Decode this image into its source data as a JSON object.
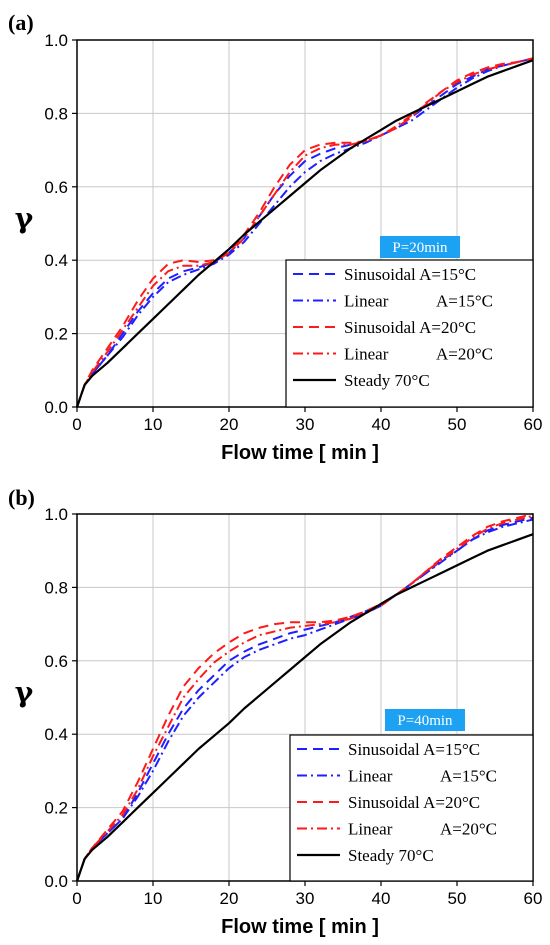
{
  "chart_data": [
    {
      "type": "line",
      "panel_label": "(a)",
      "xlabel": "Flow time [ min ]",
      "ylabel": "γ",
      "xlim": [
        0,
        60
      ],
      "ylim": [
        0,
        1.0
      ],
      "xticks": [
        0,
        10,
        20,
        30,
        40,
        50,
        60
      ],
      "yticks": [
        0.0,
        0.2,
        0.4,
        0.6,
        0.8,
        1.0
      ],
      "ytick_labels": [
        "0.0",
        "0.2",
        "0.4",
        "0.6",
        "0.8",
        "1.0"
      ],
      "grid": true,
      "legend_position": "bottom-right",
      "annotation": "P=20min",
      "annotation_color": "#1da1f2",
      "series": [
        {
          "name": "Sinusoidal A=15°C",
          "color": "#1f1fff",
          "dash": "dash",
          "x": [
            0,
            1,
            2,
            4,
            6,
            8,
            10,
            12,
            14,
            16,
            18,
            20,
            22,
            24,
            26,
            28,
            30,
            32,
            34,
            36,
            38,
            40,
            42,
            44,
            46,
            48,
            50,
            52,
            54,
            56,
            58,
            60
          ],
          "y": [
            0,
            0.06,
            0.09,
            0.14,
            0.2,
            0.26,
            0.31,
            0.35,
            0.37,
            0.38,
            0.395,
            0.42,
            0.46,
            0.52,
            0.58,
            0.63,
            0.67,
            0.69,
            0.705,
            0.715,
            0.725,
            0.74,
            0.76,
            0.79,
            0.82,
            0.85,
            0.88,
            0.9,
            0.92,
            0.93,
            0.94,
            0.95
          ]
        },
        {
          "name": "Linear A=15°C",
          "color": "#1f1fff",
          "dash": "dashdot",
          "x": [
            0,
            1,
            2,
            4,
            6,
            8,
            10,
            12,
            14,
            16,
            18,
            20,
            22,
            24,
            26,
            28,
            30,
            32,
            34,
            36,
            38,
            40,
            42,
            44,
            46,
            48,
            50,
            52,
            54,
            56,
            58,
            60
          ],
          "y": [
            0,
            0.06,
            0.09,
            0.14,
            0.19,
            0.25,
            0.3,
            0.34,
            0.36,
            0.375,
            0.39,
            0.415,
            0.45,
            0.5,
            0.55,
            0.6,
            0.64,
            0.67,
            0.69,
            0.705,
            0.72,
            0.74,
            0.76,
            0.78,
            0.81,
            0.84,
            0.87,
            0.895,
            0.915,
            0.93,
            0.94,
            0.95
          ]
        },
        {
          "name": "Sinusoidal A=20°C",
          "color": "#ff1a1a",
          "dash": "dash",
          "x": [
            0,
            1,
            2,
            4,
            6,
            8,
            10,
            12,
            14,
            16,
            18,
            20,
            22,
            24,
            26,
            28,
            30,
            32,
            34,
            36,
            38,
            40,
            42,
            44,
            46,
            48,
            50,
            52,
            54,
            56,
            58,
            60
          ],
          "y": [
            0,
            0.06,
            0.1,
            0.16,
            0.22,
            0.29,
            0.35,
            0.39,
            0.4,
            0.395,
            0.4,
            0.42,
            0.47,
            0.53,
            0.6,
            0.66,
            0.7,
            0.715,
            0.72,
            0.72,
            0.725,
            0.74,
            0.76,
            0.79,
            0.83,
            0.86,
            0.89,
            0.91,
            0.925,
            0.935,
            0.94,
            0.95
          ]
        },
        {
          "name": "Linear A=20°C",
          "color": "#ff1a1a",
          "dash": "dashdot",
          "x": [
            0,
            1,
            2,
            4,
            6,
            8,
            10,
            12,
            14,
            16,
            18,
            20,
            22,
            24,
            26,
            28,
            30,
            32,
            34,
            36,
            38,
            40,
            42,
            44,
            46,
            48,
            50,
            52,
            54,
            56,
            58,
            60
          ],
          "y": [
            0,
            0.06,
            0.095,
            0.15,
            0.21,
            0.27,
            0.33,
            0.37,
            0.385,
            0.385,
            0.395,
            0.42,
            0.46,
            0.52,
            0.58,
            0.64,
            0.685,
            0.705,
            0.715,
            0.715,
            0.725,
            0.74,
            0.765,
            0.795,
            0.825,
            0.86,
            0.885,
            0.905,
            0.92,
            0.93,
            0.94,
            0.95
          ]
        },
        {
          "name": "Steady 70°C",
          "color": "#000000",
          "dash": "solid",
          "x": [
            0,
            1,
            2,
            4,
            6,
            8,
            10,
            12,
            14,
            16,
            18,
            20,
            22,
            24,
            26,
            28,
            30,
            32,
            34,
            36,
            38,
            40,
            42,
            44,
            46,
            48,
            50,
            52,
            54,
            56,
            58,
            60
          ],
          "y": [
            0,
            0.06,
            0.085,
            0.12,
            0.16,
            0.2,
            0.24,
            0.28,
            0.32,
            0.36,
            0.395,
            0.43,
            0.47,
            0.505,
            0.54,
            0.575,
            0.61,
            0.645,
            0.675,
            0.705,
            0.73,
            0.755,
            0.78,
            0.8,
            0.82,
            0.84,
            0.86,
            0.88,
            0.9,
            0.915,
            0.93,
            0.945
          ]
        }
      ]
    },
    {
      "type": "line",
      "panel_label": "(b)",
      "xlabel": "Flow time [ min ]",
      "ylabel": "γ",
      "xlim": [
        0,
        60
      ],
      "ylim": [
        0,
        1.0
      ],
      "xticks": [
        0,
        10,
        20,
        30,
        40,
        50,
        60
      ],
      "yticks": [
        0.0,
        0.2,
        0.4,
        0.6,
        0.8,
        1.0
      ],
      "ytick_labels": [
        "0.0",
        "0.2",
        "0.4",
        "0.6",
        "0.8",
        "1.0"
      ],
      "grid": true,
      "legend_position": "bottom-right",
      "annotation": "P=40min",
      "annotation_color": "#1da1f2",
      "series": [
        {
          "name": "Sinusoidal A=15°C",
          "color": "#1f1fff",
          "dash": "dash",
          "x": [
            0,
            1,
            2,
            4,
            6,
            8,
            10,
            12,
            14,
            16,
            18,
            20,
            22,
            24,
            26,
            28,
            30,
            32,
            34,
            36,
            38,
            40,
            42,
            44,
            46,
            48,
            50,
            52,
            54,
            56,
            58,
            60
          ],
          "y": [
            0,
            0.06,
            0.09,
            0.13,
            0.17,
            0.24,
            0.32,
            0.4,
            0.47,
            0.52,
            0.56,
            0.6,
            0.625,
            0.645,
            0.66,
            0.675,
            0.685,
            0.695,
            0.705,
            0.72,
            0.735,
            0.755,
            0.78,
            0.81,
            0.84,
            0.875,
            0.9,
            0.93,
            0.955,
            0.97,
            0.98,
            0.99
          ]
        },
        {
          "name": "Linear A=15°C",
          "color": "#1f1fff",
          "dash": "dashdot",
          "x": [
            0,
            1,
            2,
            4,
            6,
            8,
            10,
            12,
            14,
            16,
            18,
            20,
            22,
            24,
            26,
            28,
            30,
            32,
            34,
            36,
            38,
            40,
            42,
            44,
            46,
            48,
            50,
            52,
            54,
            56,
            58,
            60
          ],
          "y": [
            0,
            0.06,
            0.09,
            0.13,
            0.17,
            0.23,
            0.3,
            0.38,
            0.45,
            0.5,
            0.54,
            0.58,
            0.61,
            0.63,
            0.645,
            0.66,
            0.67,
            0.685,
            0.7,
            0.715,
            0.73,
            0.75,
            0.78,
            0.81,
            0.84,
            0.87,
            0.9,
            0.93,
            0.95,
            0.965,
            0.975,
            0.985
          ]
        },
        {
          "name": "Sinusoidal A=20°C",
          "color": "#ff1a1a",
          "dash": "dash",
          "x": [
            0,
            1,
            2,
            4,
            6,
            8,
            10,
            12,
            14,
            16,
            18,
            20,
            22,
            24,
            26,
            28,
            30,
            32,
            34,
            36,
            38,
            40,
            42,
            44,
            46,
            48,
            50,
            52,
            54,
            56,
            58,
            60
          ],
          "y": [
            0,
            0.06,
            0.09,
            0.14,
            0.19,
            0.27,
            0.36,
            0.45,
            0.53,
            0.58,
            0.62,
            0.65,
            0.675,
            0.69,
            0.7,
            0.705,
            0.705,
            0.705,
            0.71,
            0.72,
            0.735,
            0.755,
            0.78,
            0.81,
            0.845,
            0.88,
            0.91,
            0.94,
            0.965,
            0.98,
            0.99,
            1.0
          ]
        },
        {
          "name": "Linear A=20°C",
          "color": "#ff1a1a",
          "dash": "dashdot",
          "x": [
            0,
            1,
            2,
            4,
            6,
            8,
            10,
            12,
            14,
            16,
            18,
            20,
            22,
            24,
            26,
            28,
            30,
            32,
            34,
            36,
            38,
            40,
            42,
            44,
            46,
            48,
            50,
            52,
            54,
            56,
            58,
            60
          ],
          "y": [
            0,
            0.06,
            0.09,
            0.135,
            0.18,
            0.25,
            0.34,
            0.42,
            0.5,
            0.55,
            0.595,
            0.625,
            0.65,
            0.67,
            0.68,
            0.69,
            0.695,
            0.7,
            0.705,
            0.715,
            0.73,
            0.75,
            0.78,
            0.81,
            0.845,
            0.875,
            0.905,
            0.935,
            0.96,
            0.975,
            0.985,
            0.995
          ]
        },
        {
          "name": "Steady 70°C",
          "color": "#000000",
          "dash": "solid",
          "x": [
            0,
            1,
            2,
            4,
            6,
            8,
            10,
            12,
            14,
            16,
            18,
            20,
            22,
            24,
            26,
            28,
            30,
            32,
            34,
            36,
            38,
            40,
            42,
            44,
            46,
            48,
            50,
            52,
            54,
            56,
            58,
            60
          ],
          "y": [
            0,
            0.06,
            0.085,
            0.12,
            0.16,
            0.2,
            0.24,
            0.28,
            0.32,
            0.36,
            0.395,
            0.43,
            0.47,
            0.505,
            0.54,
            0.575,
            0.61,
            0.645,
            0.675,
            0.705,
            0.73,
            0.755,
            0.78,
            0.8,
            0.82,
            0.84,
            0.86,
            0.88,
            0.9,
            0.915,
            0.93,
            0.945
          ]
        }
      ]
    }
  ]
}
